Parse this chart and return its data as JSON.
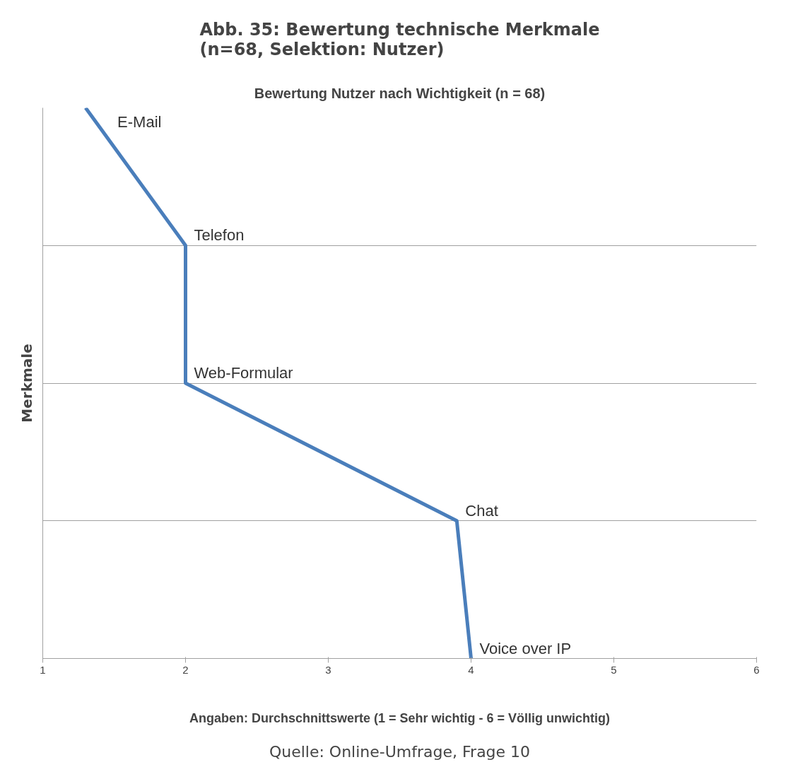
{
  "chart_data": {
    "type": "line",
    "orientation": "horizontal",
    "title": "Abb. 35: Bewertung technische Merkmale\n(n=68, Selektion: Nutzer)",
    "subtitle": "Bewertung Nutzer nach Wichtigkeit (n = 68)",
    "xlabel": "Angaben: Durchschnittswerte (1 = Sehr wichtig - 6 = Völlig unwichtig)",
    "ylabel": "Merkmale",
    "categories": [
      "E-Mail",
      "Telefon",
      "Web-Formular",
      "Chat",
      "Voice over IP"
    ],
    "series": [
      {
        "color": "#4a7ebb",
        "values": [
          1.3,
          2.0,
          2.0,
          3.9,
          4.0
        ]
      }
    ],
    "xlim": [
      1,
      6
    ],
    "xticks": [
      1,
      2,
      3,
      4,
      5,
      6
    ],
    "grid": "y",
    "tick_labels": "x",
    "marker": "none",
    "line_style": "solid",
    "annotations": [
      "Quelle: Online-Umfrage, Frage 10"
    ]
  }
}
